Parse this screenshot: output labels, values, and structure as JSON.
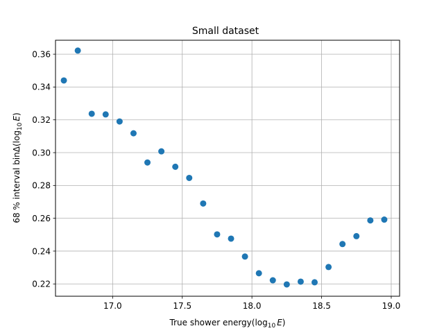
{
  "chart_data": {
    "type": "scatter",
    "title": "Small dataset",
    "xlabel": {
      "main": "True shower energy(log",
      "sub": "10",
      "var": "E",
      "close": ")"
    },
    "ylabel": {
      "main": "68 % interval binΔ(log",
      "sub": "10",
      "var": "E",
      "close": ")"
    },
    "xlim": [
      16.59,
      19.06
    ],
    "ylim": [
      0.2125,
      0.3685
    ],
    "grid": true,
    "marker_color": "#1f77b4",
    "x_ticks": [
      17.0,
      17.5,
      18.0,
      18.5,
      19.0
    ],
    "x_tick_labels": [
      "17.0",
      "17.5",
      "18.0",
      "18.5",
      "19.0"
    ],
    "y_ticks": [
      0.22,
      0.24,
      0.26,
      0.28,
      0.3,
      0.32,
      0.34,
      0.36
    ],
    "y_tick_labels": [
      "0.22",
      "0.24",
      "0.26",
      "0.28",
      "0.30",
      "0.32",
      "0.34",
      "0.36"
    ],
    "points": [
      {
        "x": 16.65,
        "y": 0.344
      },
      {
        "x": 16.75,
        "y": 0.3622
      },
      {
        "x": 16.85,
        "y": 0.3237
      },
      {
        "x": 16.95,
        "y": 0.3233
      },
      {
        "x": 17.05,
        "y": 0.319
      },
      {
        "x": 17.15,
        "y": 0.3118
      },
      {
        "x": 17.25,
        "y": 0.294
      },
      {
        "x": 17.35,
        "y": 0.3008
      },
      {
        "x": 17.45,
        "y": 0.2914
      },
      {
        "x": 17.55,
        "y": 0.2846
      },
      {
        "x": 17.65,
        "y": 0.269
      },
      {
        "x": 17.75,
        "y": 0.2502
      },
      {
        "x": 17.85,
        "y": 0.2476
      },
      {
        "x": 17.95,
        "y": 0.2367
      },
      {
        "x": 18.05,
        "y": 0.2265
      },
      {
        "x": 18.15,
        "y": 0.2222
      },
      {
        "x": 18.25,
        "y": 0.2197
      },
      {
        "x": 18.35,
        "y": 0.2214
      },
      {
        "x": 18.45,
        "y": 0.221
      },
      {
        "x": 18.55,
        "y": 0.2303
      },
      {
        "x": 18.65,
        "y": 0.2443
      },
      {
        "x": 18.75,
        "y": 0.2491
      },
      {
        "x": 18.85,
        "y": 0.2587
      },
      {
        "x": 18.95,
        "y": 0.2592
      }
    ]
  }
}
